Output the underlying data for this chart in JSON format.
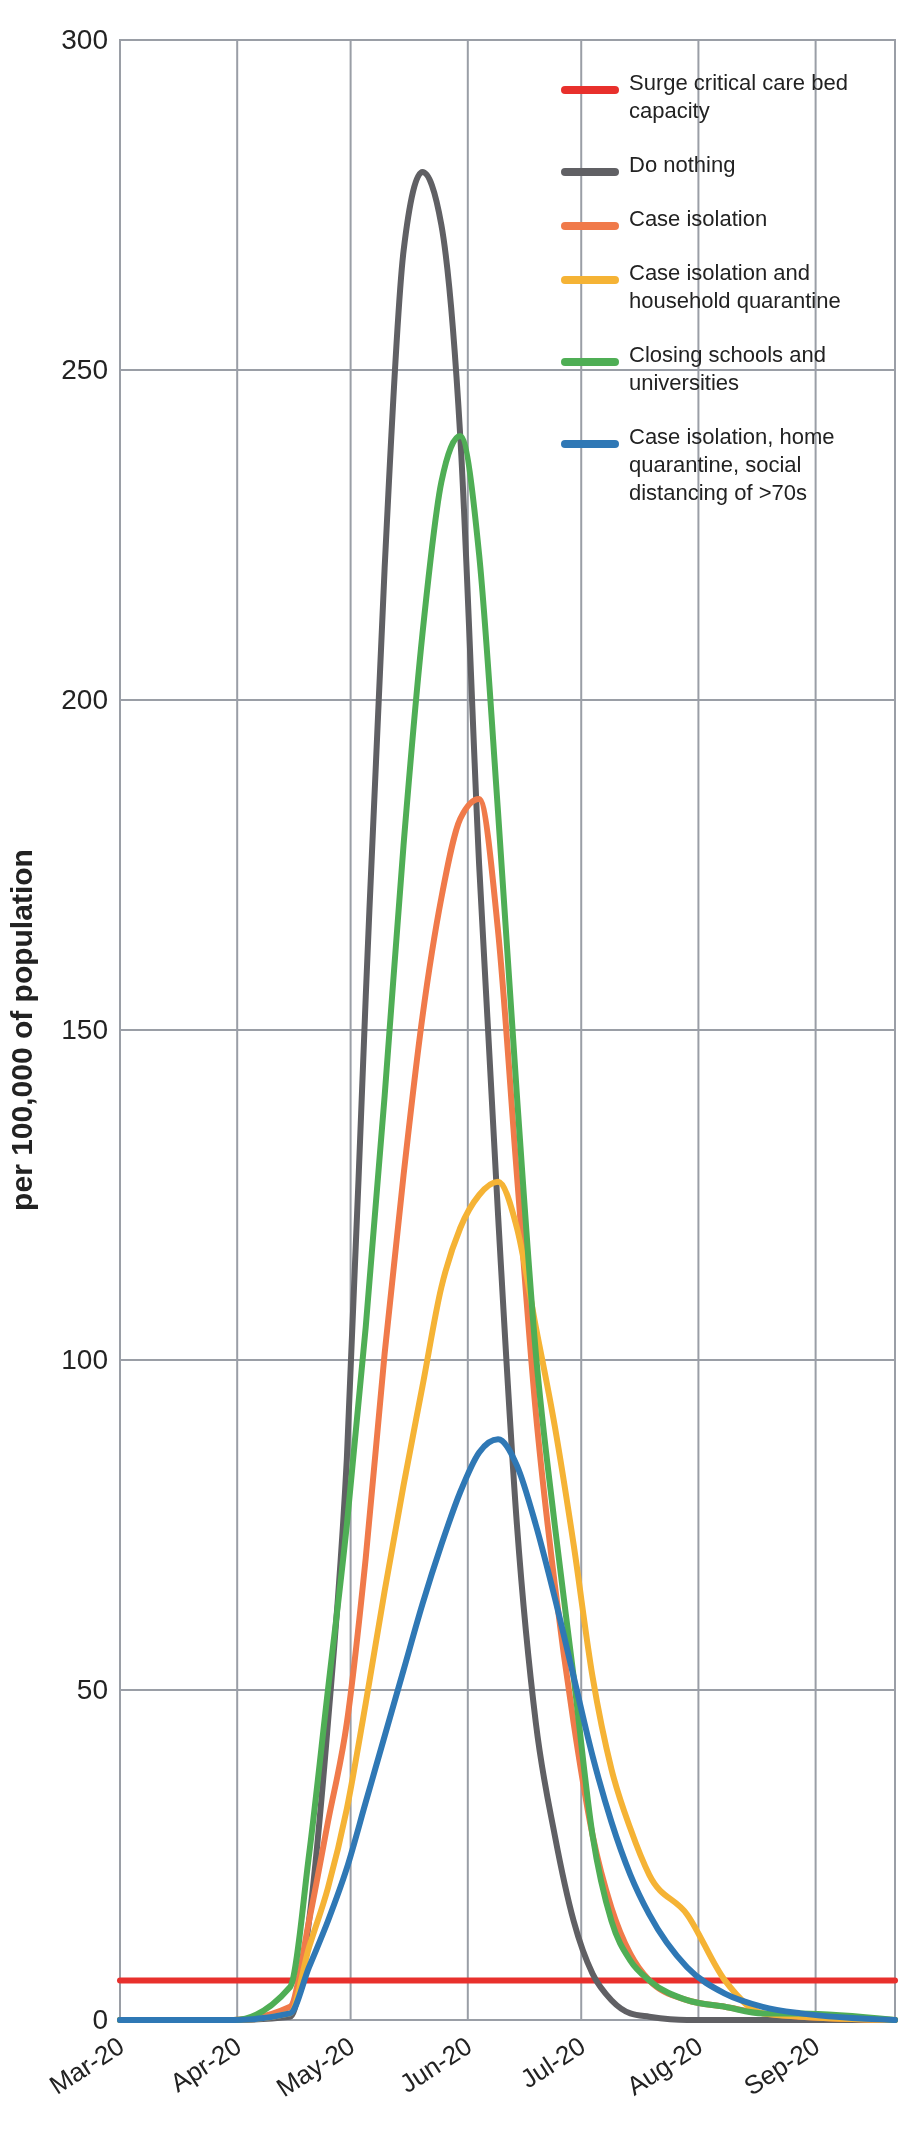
{
  "chart_data": {
    "type": "line",
    "ylabel": "per 100,000 of population",
    "x": [
      "2020-03-01",
      "2020-03-31",
      "2020-04-15",
      "2020-04-20",
      "2020-04-25",
      "2020-04-30",
      "2020-05-05",
      "2020-05-10",
      "2020-05-15",
      "2020-05-20",
      "2020-05-25",
      "2020-05-30",
      "2020-06-04",
      "2020-06-09",
      "2020-06-14",
      "2020-06-19",
      "2020-06-24",
      "2020-06-29",
      "2020-07-04",
      "2020-07-09",
      "2020-07-14",
      "2020-07-19",
      "2020-07-29",
      "2020-08-08",
      "2020-08-18",
      "2020-08-28",
      "2020-09-22"
    ],
    "series": [
      {
        "name": "Surge critical care bed capacity",
        "color": "#e8302c",
        "values": [
          6,
          6,
          6,
          6,
          6,
          6,
          6,
          6,
          6,
          6,
          6,
          6,
          6,
          6,
          6,
          6,
          6,
          6,
          6,
          6,
          6,
          6,
          6,
          6,
          6,
          6,
          6
        ]
      },
      {
        "name": "Do nothing",
        "color": "#606064",
        "values": [
          0,
          0,
          0.5,
          15,
          45,
          85,
          155,
          220,
          268,
          280,
          272,
          240,
          175,
          122,
          75,
          45,
          28,
          15,
          7,
          3,
          1,
          0.5,
          0,
          0,
          0,
          0,
          0
        ]
      },
      {
        "name": "Case isolation",
        "color": "#f07a4a",
        "values": [
          0,
          0,
          2,
          15,
          30,
          45,
          70,
          101,
          128,
          152,
          170,
          182,
          185,
          165,
          128,
          92,
          66,
          45,
          28,
          17,
          10,
          6,
          3,
          2,
          1,
          0.5,
          0
        ]
      },
      {
        "name": "Case isolation and household quarantine",
        "color": "#f5b335",
        "values": [
          0,
          0,
          1,
          11,
          20,
          32,
          48,
          65,
          81,
          96,
          111,
          120,
          125,
          127,
          120,
          105,
          90,
          72,
          52,
          38,
          29,
          22,
          16,
          6,
          1,
          0.5,
          0
        ]
      },
      {
        "name": "Closing schools and universities",
        "color": "#4fae55",
        "values": [
          0,
          0,
          5,
          25,
          50,
          75,
          105,
          140,
          178,
          210,
          233,
          240,
          222,
          183,
          140,
          101,
          75,
          52,
          28,
          15,
          9,
          6,
          3,
          2,
          1,
          1,
          0
        ]
      },
      {
        "name": "Case isolation, home quarantine, social distancing of >70s",
        "color": "#2f78b5",
        "values": [
          0,
          0,
          1,
          8,
          15,
          23,
          33,
          43,
          53,
          63,
          72,
          80,
          86,
          88,
          84,
          75,
          64,
          52,
          40,
          30,
          22,
          16,
          8,
          4,
          2,
          1,
          0
        ]
      }
    ],
    "xlim": [
      "2020-03-01",
      "2020-09-22"
    ],
    "xticks": [
      {
        "value": "2020-03-01",
        "label": "Mar-20"
      },
      {
        "value": "2020-04-01",
        "label": "Apr-20"
      },
      {
        "value": "2020-05-01",
        "label": "May-20"
      },
      {
        "value": "2020-06-01",
        "label": "Jun-20"
      },
      {
        "value": "2020-07-01",
        "label": "Jul-20"
      },
      {
        "value": "2020-08-01",
        "label": "Aug-20"
      },
      {
        "value": "2020-09-01",
        "label": "Sep-20"
      }
    ],
    "ylim": [
      0,
      300
    ],
    "yticks": [
      0,
      50,
      100,
      150,
      200,
      250,
      300
    ],
    "grid": true,
    "legend": "top right",
    "marker": "none",
    "line_style": "solid"
  }
}
